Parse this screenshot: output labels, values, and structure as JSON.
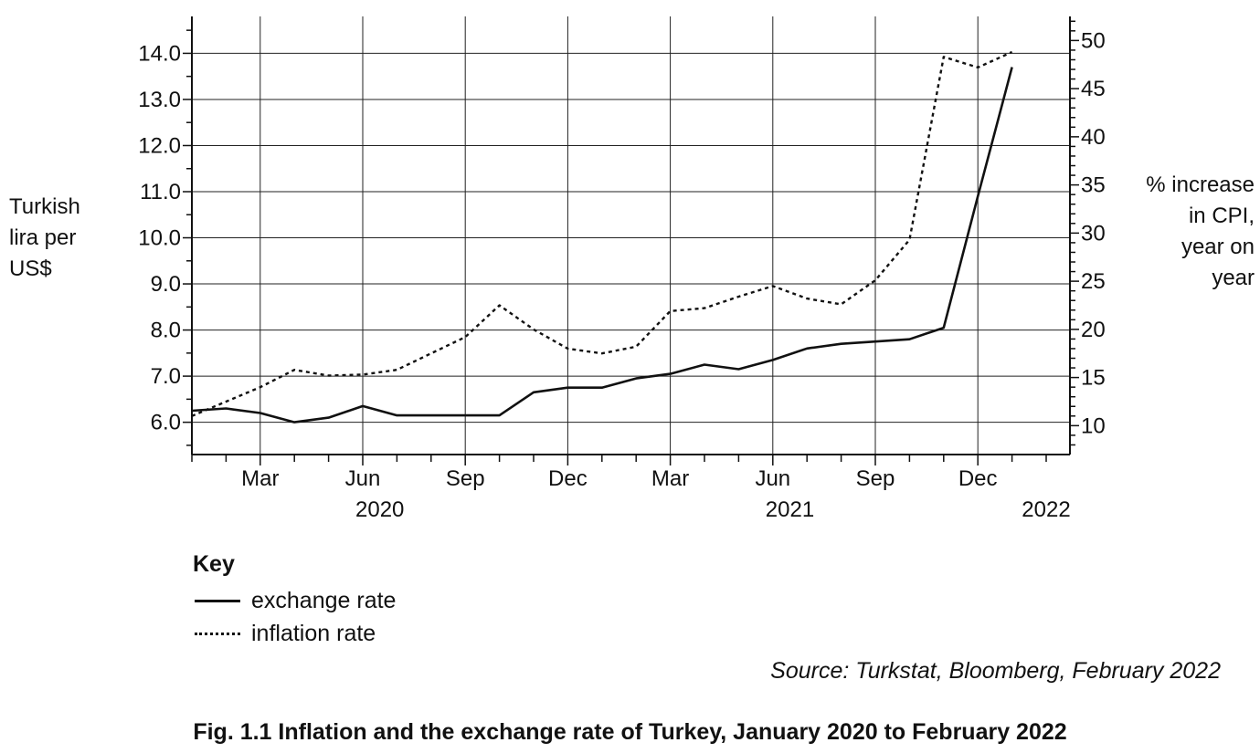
{
  "chart_data": {
    "type": "line",
    "caption": "Fig. 1.1 Inflation and the exchange rate of Turkey, January 2020 to February 2022",
    "source": "Source: Turkstat, Bloomberg, February 2022",
    "left_axis": {
      "label_lines": [
        "Turkish",
        "lira per",
        "US$"
      ],
      "ticks": [
        "6.0",
        "7.0",
        "8.0",
        "9.0",
        "10.0",
        "11.0",
        "12.0",
        "13.0",
        "14.0"
      ],
      "tick_values": [
        6,
        7,
        8,
        9,
        10,
        11,
        12,
        13,
        14
      ],
      "range": [
        5.3,
        14.8
      ]
    },
    "right_axis": {
      "label_lines": [
        "% increase",
        "in CPI,",
        "year on",
        "year"
      ],
      "ticks": [
        "10",
        "15",
        "20",
        "25",
        "30",
        "35",
        "40",
        "45",
        "50"
      ],
      "tick_values": [
        10,
        15,
        20,
        25,
        30,
        35,
        40,
        45,
        50
      ],
      "range": [
        7,
        52.5
      ]
    },
    "x_axis": {
      "month_ticks": [
        {
          "label": "Mar",
          "m": 2
        },
        {
          "label": "Jun",
          "m": 5
        },
        {
          "label": "Sep",
          "m": 8
        },
        {
          "label": "Dec",
          "m": 11
        },
        {
          "label": "Mar",
          "m": 14
        },
        {
          "label": "Jun",
          "m": 17
        },
        {
          "label": "Sep",
          "m": 20
        },
        {
          "label": "Dec",
          "m": 23
        }
      ],
      "year_labels": [
        {
          "label": "2020",
          "m": 5.5
        },
        {
          "label": "2021",
          "m": 17.5
        },
        {
          "label": "2022",
          "m": 25
        }
      ],
      "range": [
        0,
        26.5
      ]
    },
    "grid": true,
    "key_title": "Key",
    "series": [
      {
        "name": "exchange rate",
        "axis": "left",
        "style": "solid",
        "x": [
          "2020-01",
          "2020-02",
          "2020-03",
          "2020-04",
          "2020-05",
          "2020-06",
          "2020-07",
          "2020-08",
          "2020-09",
          "2020-10",
          "2020-11",
          "2020-12",
          "2021-01",
          "2021-02",
          "2021-03",
          "2021-04",
          "2021-05",
          "2021-06",
          "2021-07",
          "2021-08",
          "2021-09",
          "2021-10",
          "2021-11",
          "2021-12",
          "2022-01"
        ],
        "values": [
          6.25,
          6.3,
          6.2,
          6.0,
          6.1,
          6.35,
          6.15,
          6.15,
          6.15,
          6.15,
          6.65,
          6.75,
          6.75,
          6.95,
          7.05,
          7.25,
          7.15,
          7.35,
          7.6,
          7.7,
          7.75,
          7.8,
          8.05,
          10.9,
          13.7
        ]
      },
      {
        "name": "inflation rate",
        "axis": "right",
        "style": "dotted",
        "x": [
          "2020-01",
          "2020-02",
          "2020-03",
          "2020-04",
          "2020-05",
          "2020-06",
          "2020-07",
          "2020-08",
          "2020-09",
          "2020-10",
          "2020-11",
          "2020-12",
          "2021-01",
          "2021-02",
          "2021-03",
          "2021-04",
          "2021-05",
          "2021-06",
          "2021-07",
          "2021-08",
          "2021-09",
          "2021-10",
          "2021-11",
          "2021-12",
          "2022-01"
        ],
        "values": [
          11.0,
          12.5,
          14.0,
          15.8,
          15.2,
          15.3,
          15.8,
          17.5,
          19.2,
          22.5,
          20.0,
          18.0,
          17.5,
          18.2,
          21.9,
          22.2,
          23.4,
          24.5,
          23.2,
          22.6,
          25.1,
          29.3,
          48.3,
          47.2,
          48.8
        ]
      }
    ]
  }
}
